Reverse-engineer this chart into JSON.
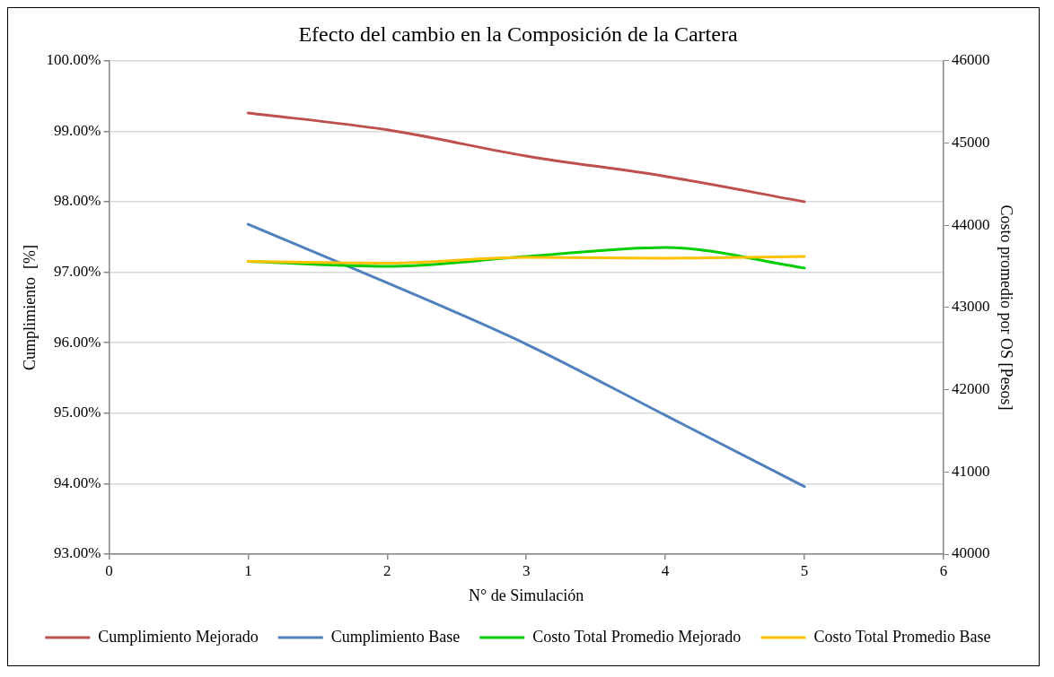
{
  "chart_data": {
    "type": "line",
    "title": "Efecto del cambio en la Composición de la Cartera",
    "xlabel": "N° de Simulación",
    "ylabel": "Cumplimiento  [%]",
    "y2label": "Costo promedio por OS [Pesos]",
    "x": [
      1,
      2,
      3,
      4,
      5
    ],
    "series": [
      {
        "name": "Cumplimiento Mejorado",
        "color": "#c0504d",
        "values": [
          99.26,
          99.02,
          98.65,
          98.36,
          98.0
        ]
      },
      {
        "name": "Cumplimiento Base",
        "color": "#4f81bd",
        "values": [
          97.68,
          96.85,
          95.98,
          94.97,
          93.96
        ]
      },
      {
        "name": "Costo Total Promedio Mejorado",
        "color": "#00cc00",
        "axis": "y2",
        "values": [
          43560,
          43500,
          43620,
          43730,
          43480
        ]
      },
      {
        "name": "Costo Total Promedio Base",
        "color": "#ffc000",
        "axis": "y2",
        "values": [
          43560,
          43540,
          43610,
          43600,
          43620
        ]
      }
    ],
    "xlim": [
      0,
      6
    ],
    "xticks": [
      0,
      1,
      2,
      3,
      4,
      5,
      6
    ],
    "ylim": [
      93,
      100
    ],
    "yticks": [
      {
        "value": 93,
        "label": "93.00%"
      },
      {
        "value": 94,
        "label": "94.00%"
      },
      {
        "value": 95,
        "label": "95.00%"
      },
      {
        "value": 96,
        "label": "96.00%"
      },
      {
        "value": 97,
        "label": "97.00%"
      },
      {
        "value": 98,
        "label": "98.00%"
      },
      {
        "value": 99,
        "label": "99.00%"
      },
      {
        "value": 100,
        "label": "100.00%"
      }
    ],
    "y2lim": [
      40000,
      46000
    ],
    "y2ticks": [
      40000,
      41000,
      42000,
      43000,
      44000,
      45000,
      46000
    ],
    "grid": "y",
    "legend": "bottom",
    "marker": "none",
    "line_style": "solid"
  }
}
